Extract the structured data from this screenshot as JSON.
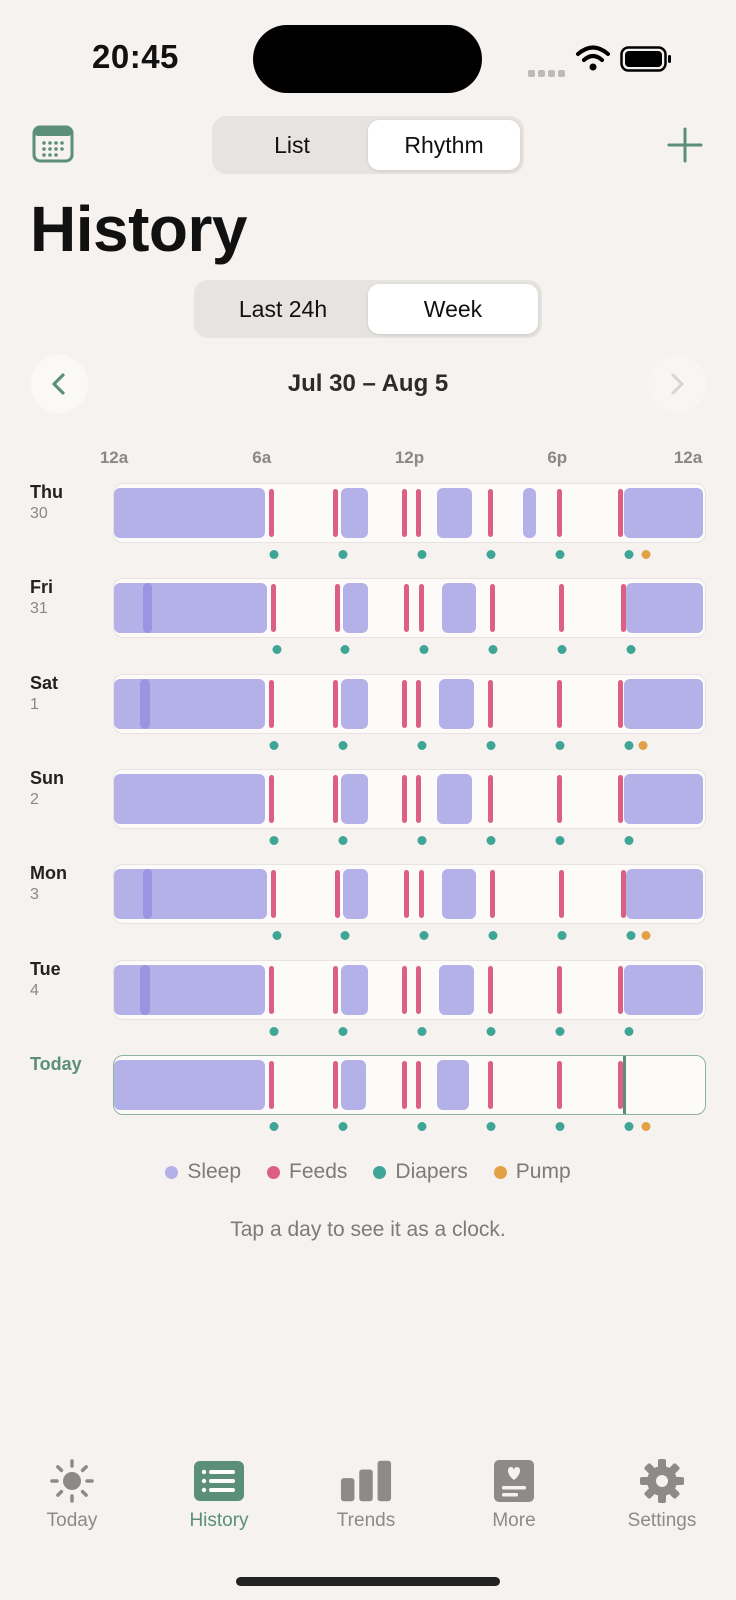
{
  "status": {
    "time": "20:45"
  },
  "view_toggle": {
    "options": [
      "List",
      "Rhythm"
    ],
    "selected": "Rhythm"
  },
  "title": "History",
  "range_toggle": {
    "options": [
      "Last 24h",
      "Week"
    ],
    "selected": "Week"
  },
  "week_label": "Jul 30 – Aug 5",
  "colors": {
    "sleep": "#b4b0e8",
    "feeds": "#dc5f84",
    "diapers": "#3fa597",
    "pump": "#e3a146",
    "accent": "#5b8f79"
  },
  "chart_data": {
    "type": "timeline",
    "x_unit": "hour of day",
    "xlim": [
      0,
      24
    ],
    "ticks": [
      {
        "label": "12a",
        "hour": 0
      },
      {
        "label": "6a",
        "hour": 6
      },
      {
        "label": "12p",
        "hour": 12
      },
      {
        "label": "6p",
        "hour": 18
      },
      {
        "label": "12a",
        "hour": 24
      }
    ],
    "days": [
      {
        "name": "Thu",
        "num": "30",
        "sleep": [
          [
            0,
            6.2
          ],
          [
            9.2,
            10.4
          ],
          [
            13.1,
            14.6
          ],
          [
            16.6,
            17.2
          ],
          [
            20.7,
            24
          ]
        ],
        "deep_sleep": [],
        "feeds": [
          6.4,
          9.0,
          11.8,
          12.4,
          15.3,
          18.1,
          20.6
        ],
        "diapers": [
          6.5,
          9.3,
          12.5,
          15.3,
          18.1,
          20.9
        ],
        "pump": [
          21.6
        ]
      },
      {
        "name": "Fri",
        "num": "31",
        "sleep": [
          [
            0,
            6.3
          ],
          [
            9.3,
            10.4
          ],
          [
            13.3,
            14.8
          ],
          [
            20.8,
            24
          ]
        ],
        "deep_sleep": [
          [
            1.2,
            1.6
          ]
        ],
        "feeds": [
          6.5,
          9.1,
          11.9,
          12.5,
          15.4,
          18.2,
          20.7
        ],
        "diapers": [
          6.6,
          9.4,
          12.6,
          15.4,
          18.2,
          21.0
        ],
        "pump": []
      },
      {
        "name": "Sat",
        "num": "1",
        "sleep": [
          [
            0,
            6.2
          ],
          [
            9.2,
            10.4
          ],
          [
            13.2,
            14.7
          ],
          [
            20.7,
            24
          ]
        ],
        "deep_sleep": [
          [
            1.1,
            1.5
          ]
        ],
        "feeds": [
          6.4,
          9.0,
          11.8,
          12.4,
          15.3,
          18.1,
          20.6
        ],
        "diapers": [
          6.5,
          9.3,
          12.5,
          15.3,
          18.1,
          20.9
        ],
        "pump": [
          21.5
        ]
      },
      {
        "name": "Sun",
        "num": "2",
        "sleep": [
          [
            0,
            6.2
          ],
          [
            9.2,
            10.4
          ],
          [
            13.1,
            14.6
          ],
          [
            20.7,
            24
          ]
        ],
        "deep_sleep": [],
        "feeds": [
          6.4,
          9.0,
          11.8,
          12.4,
          15.3,
          18.1,
          20.6
        ],
        "diapers": [
          6.5,
          9.3,
          12.5,
          15.3,
          18.1,
          20.9
        ],
        "pump": []
      },
      {
        "name": "Mon",
        "num": "3",
        "sleep": [
          [
            0,
            6.3
          ],
          [
            9.3,
            10.4
          ],
          [
            13.3,
            14.8
          ],
          [
            20.8,
            24
          ]
        ],
        "deep_sleep": [
          [
            1.2,
            1.6
          ]
        ],
        "feeds": [
          6.5,
          9.1,
          11.9,
          12.5,
          15.4,
          18.2,
          20.7
        ],
        "diapers": [
          6.6,
          9.4,
          12.6,
          15.4,
          18.2,
          21.0
        ],
        "pump": [
          21.6
        ]
      },
      {
        "name": "Tue",
        "num": "4",
        "sleep": [
          [
            0,
            6.2
          ],
          [
            9.2,
            10.4
          ],
          [
            13.2,
            14.7
          ],
          [
            20.7,
            24
          ]
        ],
        "deep_sleep": [
          [
            1.1,
            1.5
          ]
        ],
        "feeds": [
          6.4,
          9.0,
          11.8,
          12.4,
          15.3,
          18.1,
          20.6
        ],
        "diapers": [
          6.5,
          9.3,
          12.5,
          15.3,
          18.1,
          20.9
        ],
        "pump": []
      },
      {
        "name": "Today",
        "num": "",
        "sleep": [
          [
            0,
            6.2
          ],
          [
            9.2,
            10.3
          ],
          [
            13.1,
            14.5
          ]
        ],
        "deep_sleep": [],
        "feeds": [
          6.4,
          9.0,
          11.8,
          12.4,
          15.3,
          18.1,
          20.6
        ],
        "diapers": [
          6.5,
          9.3,
          12.5,
          15.3,
          18.1,
          20.9
        ],
        "pump": [
          21.6
        ],
        "now": 20.75
      }
    ],
    "legend": [
      "Sleep",
      "Feeds",
      "Diapers",
      "Pump"
    ]
  },
  "hint": "Tap a day to see it as a clock.",
  "tabs": [
    {
      "label": "Today",
      "icon": "sun-icon"
    },
    {
      "label": "History",
      "icon": "list-icon"
    },
    {
      "label": "Trends",
      "icon": "bar-chart-icon"
    },
    {
      "label": "More",
      "icon": "heart-card-icon"
    },
    {
      "label": "Settings",
      "icon": "gear-icon"
    }
  ],
  "active_tab": "History"
}
